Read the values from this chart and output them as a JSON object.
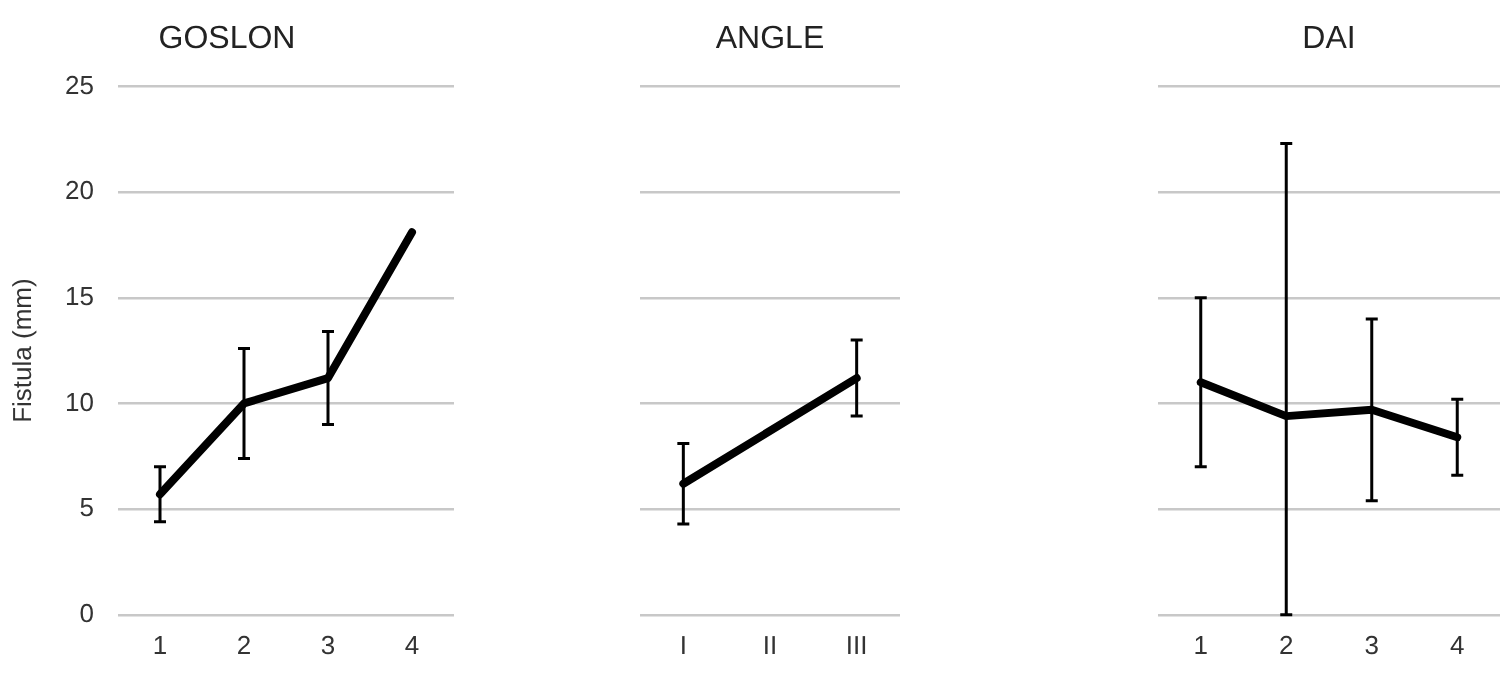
{
  "chart_data": [
    {
      "type": "line",
      "title": "GOSLON",
      "ylabel": "Fistula (mm)",
      "categories": [
        "1",
        "2",
        "3",
        "4"
      ],
      "values": [
        5.7,
        10.0,
        11.2,
        18.1
      ],
      "errors": [
        1.3,
        2.6,
        2.2,
        null
      ],
      "color": "#000000",
      "ylim": [
        0,
        25
      ],
      "yticks": [
        0,
        5,
        10,
        15,
        20,
        25
      ],
      "grid": "y",
      "marker": "none"
    },
    {
      "type": "line",
      "title": "ANGLE",
      "categories": [
        "I",
        "II",
        "III"
      ],
      "values": [
        6.2,
        null,
        11.2
      ],
      "errors": [
        1.9,
        null,
        1.8
      ],
      "color": "#000000",
      "ylim": [
        0,
        25
      ],
      "yticks": [
        0,
        5,
        10,
        15,
        20,
        25
      ],
      "grid": "y",
      "marker": "none",
      "tick_labels": "x"
    },
    {
      "type": "line",
      "title": "DAI",
      "categories": [
        "1",
        "2",
        "3",
        "4"
      ],
      "values": [
        11.0,
        9.4,
        9.7,
        8.4
      ],
      "errors": [
        4.0,
        [
          0,
          22.3
        ],
        4.3,
        1.8
      ],
      "color": "#000000",
      "ylim": [
        0,
        25
      ],
      "yticks": [
        0,
        5,
        10,
        15,
        20,
        25
      ],
      "grid": "y",
      "marker": "none",
      "tick_labels": "x"
    }
  ]
}
